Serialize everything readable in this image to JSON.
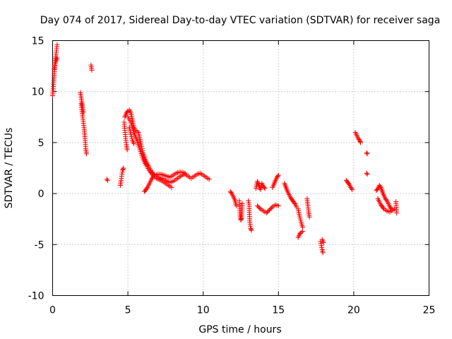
{
  "chart_data": {
    "type": "scatter",
    "title": "Day 074 of 2017, Sidereal Day-to-day VTEC variation (SDTVAR) for receiver saga",
    "xlabel": "GPS time / hours",
    "ylabel": "SDTVAR / TECUs",
    "xlim": [
      0,
      25
    ],
    "ylim": [
      -10,
      15
    ],
    "xticks": [
      0,
      5,
      10,
      15,
      20,
      25
    ],
    "yticks": [
      -10,
      -5,
      0,
      5,
      10,
      15
    ],
    "xtick_labels": [
      "0",
      "5",
      "10",
      "15",
      "20",
      "25"
    ],
    "ytick_labels": [
      "-10",
      "-5",
      "0",
      "5",
      "10",
      "15"
    ],
    "grid": true,
    "marker": "+",
    "color": "#ff0000",
    "series": [
      {
        "name": "SDTVAR",
        "segments": [
          [
            [
              0.0,
              9.6
            ],
            [
              0.05,
              10.5
            ],
            [
              0.1,
              11.6
            ],
            [
              0.15,
              12.7
            ],
            [
              0.2,
              13.4
            ],
            [
              0.25,
              14.0
            ],
            [
              0.3,
              14.6
            ]
          ],
          [
            [
              0.1,
              12.2
            ],
            [
              0.2,
              12.9
            ],
            [
              0.3,
              13.3
            ]
          ],
          [
            [
              1.85,
              9.9
            ],
            [
              1.9,
              9.4
            ],
            [
              1.95,
              8.9
            ],
            [
              2.0,
              8.4
            ],
            [
              2.05,
              8.0
            ]
          ],
          [
            [
              1.9,
              8.8
            ],
            [
              2.0,
              7.5
            ],
            [
              2.1,
              6.3
            ],
            [
              2.15,
              5.4
            ],
            [
              2.2,
              4.4
            ],
            [
              2.25,
              3.9
            ]
          ],
          [
            [
              2.55,
              12.6
            ],
            [
              2.6,
              12.1
            ]
          ],
          [
            [
              3.6,
              1.4
            ],
            [
              3.65,
              1.3
            ]
          ],
          [
            [
              4.5,
              0.8
            ],
            [
              4.55,
              1.3
            ],
            [
              4.6,
              1.9
            ],
            [
              4.65,
              2.3
            ],
            [
              4.7,
              2.5
            ]
          ],
          [
            [
              4.75,
              7.0
            ],
            [
              4.8,
              6.2
            ],
            [
              4.85,
              5.4
            ],
            [
              4.9,
              4.8
            ],
            [
              4.95,
              4.3
            ]
          ],
          [
            [
              4.8,
              7.5
            ],
            [
              4.9,
              7.9
            ],
            [
              5.0,
              8.1
            ],
            [
              5.1,
              8.2
            ],
            [
              5.2,
              7.9
            ],
            [
              5.3,
              7.2
            ],
            [
              5.4,
              6.5
            ],
            [
              5.5,
              6.2
            ],
            [
              5.6,
              6.1
            ],
            [
              5.7,
              6.0
            ],
            [
              5.8,
              5.3
            ],
            [
              5.9,
              4.6
            ],
            [
              6.0,
              4.0
            ],
            [
              6.2,
              3.2
            ],
            [
              6.4,
              2.6
            ],
            [
              6.6,
              2.1
            ],
            [
              6.8,
              1.8
            ],
            [
              7.0,
              1.6
            ],
            [
              7.2,
              1.5
            ],
            [
              7.4,
              1.4
            ],
            [
              7.6,
              1.2
            ],
            [
              7.8,
              1.1
            ],
            [
              8.0,
              1.2
            ],
            [
              8.2,
              1.4
            ],
            [
              8.4,
              1.6
            ],
            [
              8.6,
              1.8
            ],
            [
              8.8,
              1.9
            ],
            [
              9.0,
              1.7
            ],
            [
              9.2,
              1.5
            ],
            [
              9.4,
              1.7
            ],
            [
              9.6,
              1.9
            ],
            [
              9.8,
              2.0
            ],
            [
              10.0,
              1.8
            ],
            [
              10.2,
              1.6
            ],
            [
              10.4,
              1.4
            ]
          ],
          [
            [
              5.0,
              7.5
            ],
            [
              5.2,
              7.0
            ],
            [
              5.4,
              6.0
            ],
            [
              5.6,
              5.2
            ],
            [
              5.8,
              4.3
            ],
            [
              6.0,
              3.4
            ],
            [
              6.2,
              2.8
            ],
            [
              6.4,
              2.3
            ],
            [
              6.6,
              1.9
            ],
            [
              6.8,
              1.6
            ],
            [
              7.0,
              1.4
            ],
            [
              7.2,
              1.3
            ],
            [
              7.4,
              1.1
            ],
            [
              7.6,
              0.9
            ],
            [
              7.8,
              0.7
            ],
            [
              7.9,
              0.6
            ]
          ],
          [
            [
              6.1,
              0.2
            ],
            [
              6.2,
              0.4
            ],
            [
              6.3,
              0.6
            ],
            [
              6.4,
              0.9
            ],
            [
              6.5,
              1.2
            ],
            [
              6.6,
              1.5
            ],
            [
              6.7,
              1.7
            ],
            [
              6.8,
              1.8
            ],
            [
              7.0,
              1.9
            ],
            [
              7.2,
              1.9
            ],
            [
              7.4,
              1.8
            ],
            [
              7.6,
              1.7
            ],
            [
              7.8,
              1.6
            ],
            [
              8.0,
              1.8
            ],
            [
              8.2,
              2.0
            ],
            [
              8.4,
              2.1
            ],
            [
              8.6,
              2.1
            ],
            [
              8.8,
              2.0
            ]
          ],
          [
            [
              5.1,
              6.5
            ],
            [
              5.2,
              5.8
            ],
            [
              5.3,
              5.2
            ],
            [
              5.4,
              4.9
            ]
          ],
          [
            [
              11.8,
              0.2
            ],
            [
              11.9,
              0.0
            ],
            [
              12.0,
              -0.3
            ],
            [
              12.1,
              -0.6
            ],
            [
              12.15,
              -0.9
            ],
            [
              12.2,
              -1.2
            ]
          ],
          [
            [
              12.4,
              -0.7
            ],
            [
              12.45,
              -2.1
            ],
            [
              12.5,
              -2.6
            ],
            [
              12.55,
              -2.4
            ],
            [
              12.6,
              -1.0
            ]
          ],
          [
            [
              13.0,
              -0.7
            ],
            [
              13.05,
              -1.1
            ],
            [
              13.1,
              -2.8
            ],
            [
              13.15,
              -3.4
            ],
            [
              13.2,
              -3.6
            ]
          ],
          [
            [
              13.5,
              0.5
            ],
            [
              13.6,
              1.2
            ],
            [
              13.7,
              0.8
            ],
            [
              13.8,
              0.4
            ],
            [
              13.9,
              1.0
            ],
            [
              14.0,
              0.7
            ],
            [
              14.1,
              0.5
            ]
          ],
          [
            [
              13.6,
              -1.2
            ],
            [
              13.8,
              -1.5
            ],
            [
              14.0,
              -1.7
            ],
            [
              14.2,
              -1.9
            ],
            [
              14.4,
              -1.6
            ],
            [
              14.6,
              -1.3
            ],
            [
              14.8,
              -1.1
            ],
            [
              15.0,
              -1.2
            ]
          ],
          [
            [
              14.6,
              0.6
            ],
            [
              14.7,
              0.9
            ],
            [
              14.8,
              1.3
            ],
            [
              14.9,
              1.6
            ],
            [
              15.0,
              1.8
            ]
          ],
          [
            [
              15.4,
              1.0
            ],
            [
              15.5,
              0.6
            ],
            [
              15.6,
              0.2
            ],
            [
              15.7,
              -0.1
            ],
            [
              15.8,
              -0.4
            ],
            [
              15.9,
              -0.6
            ],
            [
              16.0,
              -0.8
            ],
            [
              16.1,
              -1.0
            ],
            [
              16.2,
              -1.3
            ]
          ],
          [
            [
              16.3,
              -1.5
            ],
            [
              16.4,
              -2.2
            ],
            [
              16.5,
              -2.8
            ],
            [
              16.6,
              -3.3
            ]
          ],
          [
            [
              16.3,
              -4.3
            ],
            [
              16.4,
              -4.0
            ],
            [
              16.5,
              -3.8
            ],
            [
              16.6,
              -3.7
            ]
          ],
          [
            [
              16.9,
              -0.5
            ],
            [
              16.95,
              -1.2
            ],
            [
              17.0,
              -1.8
            ],
            [
              17.05,
              -2.3
            ]
          ],
          [
            [
              17.8,
              -4.7
            ],
            [
              17.85,
              -5.1
            ],
            [
              17.9,
              -5.5
            ],
            [
              17.95,
              -5.8
            ]
          ],
          [
            [
              17.9,
              -4.5
            ],
            [
              18.0,
              -4.8
            ]
          ],
          [
            [
              19.5,
              1.3
            ],
            [
              19.6,
              1.1
            ],
            [
              19.7,
              0.9
            ],
            [
              19.8,
              0.6
            ],
            [
              19.9,
              0.4
            ]
          ],
          [
            [
              20.1,
              6.0
            ],
            [
              20.2,
              5.7
            ],
            [
              20.3,
              5.4
            ],
            [
              20.4,
              5.2
            ],
            [
              20.45,
              5.0
            ]
          ],
          [
            [
              20.85,
              4.0
            ],
            [
              20.9,
              3.9
            ]
          ],
          [
            [
              20.85,
              2.0
            ],
            [
              20.9,
              1.9
            ]
          ],
          [
            [
              21.5,
              0.3
            ],
            [
              21.6,
              0.5
            ],
            [
              21.7,
              0.8
            ],
            [
              21.8,
              0.6
            ],
            [
              21.9,
              0.2
            ],
            [
              22.0,
              -0.2
            ],
            [
              22.1,
              -0.5
            ],
            [
              22.2,
              -0.7
            ],
            [
              22.3,
              -1.0
            ],
            [
              22.4,
              -1.3
            ],
            [
              22.5,
              -1.5
            ],
            [
              22.6,
              -1.6
            ],
            [
              22.7,
              -1.5
            ]
          ],
          [
            [
              21.6,
              -0.5
            ],
            [
              21.7,
              -0.8
            ],
            [
              21.8,
              -1.1
            ],
            [
              21.9,
              -1.3
            ],
            [
              22.0,
              -1.5
            ],
            [
              22.2,
              -1.7
            ],
            [
              22.4,
              -1.8
            ],
            [
              22.6,
              -1.6
            ]
          ],
          [
            [
              22.8,
              -0.8
            ],
            [
              22.85,
              -1.9
            ]
          ]
        ]
      }
    ]
  }
}
